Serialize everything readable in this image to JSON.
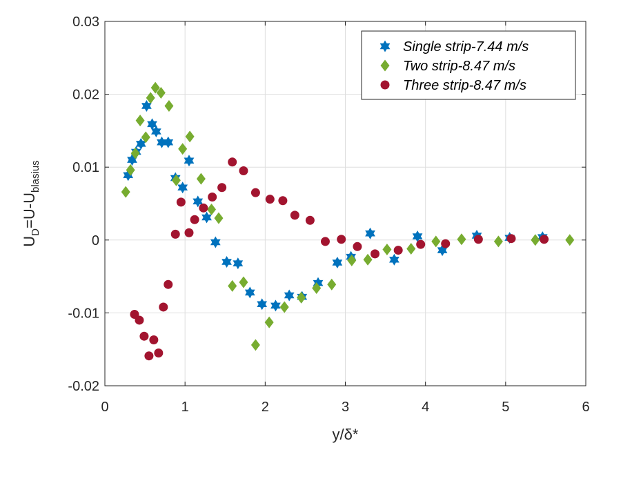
{
  "chart_data": {
    "type": "scatter",
    "xlabel": "y/δ*",
    "ylabel": "U_D=U-U_blasius",
    "ylabel_parts": {
      "main": "U",
      "sub1": "D",
      "mid": "=U-U",
      "sub2": "blasius"
    },
    "xlim": [
      0,
      6
    ],
    "ylim": [
      -0.02,
      0.03
    ],
    "xticks": [
      "0",
      "1",
      "2",
      "3",
      "4",
      "5",
      "6"
    ],
    "yticks": [
      "-0.02",
      "-0.01",
      "0",
      "0.01",
      "0.02",
      "0.03"
    ],
    "grid": true,
    "legend_position": "top-right",
    "series": [
      {
        "name": "Single strip-7.44 m/s",
        "marker": "hexagram",
        "color": "#0072BD",
        "points": [
          [
            0.29,
            0.0089
          ],
          [
            0.34,
            0.011
          ],
          [
            0.39,
            0.0121
          ],
          [
            0.45,
            0.0132
          ],
          [
            0.52,
            0.0184
          ],
          [
            0.59,
            0.0159
          ],
          [
            0.64,
            0.0149
          ],
          [
            0.71,
            0.0134
          ],
          [
            0.79,
            0.0134
          ],
          [
            0.88,
            0.0085
          ],
          [
            0.97,
            0.0072
          ],
          [
            1.05,
            0.0109
          ],
          [
            1.16,
            0.0053
          ],
          [
            1.27,
            0.0031
          ],
          [
            1.38,
            -0.0003
          ],
          [
            1.52,
            -0.003
          ],
          [
            1.66,
            -0.0032
          ],
          [
            1.81,
            -0.0072
          ],
          [
            1.96,
            -0.0088
          ],
          [
            2.13,
            -0.009
          ],
          [
            2.3,
            -0.0076
          ],
          [
            2.46,
            -0.0078
          ],
          [
            2.66,
            -0.0059
          ],
          [
            2.9,
            -0.0031
          ],
          [
            3.07,
            -0.0023
          ],
          [
            3.31,
            0.0009
          ],
          [
            3.61,
            -0.0027
          ],
          [
            3.9,
            0.0005
          ],
          [
            4.21,
            -0.0014
          ],
          [
            4.64,
            0.0006
          ],
          [
            5.05,
            0.0003
          ],
          [
            5.46,
            0.0004
          ]
        ]
      },
      {
        "name": "Two strip-8.47 m/s",
        "marker": "diamond",
        "color": "#77AC30",
        "points": [
          [
            0.26,
            0.0066
          ],
          [
            0.32,
            0.0096
          ],
          [
            0.38,
            0.0119
          ],
          [
            0.44,
            0.0164
          ],
          [
            0.51,
            0.0141
          ],
          [
            0.57,
            0.0195
          ],
          [
            0.63,
            0.0209
          ],
          [
            0.7,
            0.0202
          ],
          [
            0.8,
            0.0184
          ],
          [
            0.89,
            0.0082
          ],
          [
            0.97,
            0.0125
          ],
          [
            1.06,
            0.0142
          ],
          [
            1.2,
            0.0084
          ],
          [
            1.33,
            0.0042
          ],
          [
            1.42,
            0.003
          ],
          [
            1.59,
            -0.0063
          ],
          [
            1.73,
            -0.0058
          ],
          [
            1.88,
            -0.0144
          ],
          [
            2.05,
            -0.0113
          ],
          [
            2.24,
            -0.0092
          ],
          [
            2.45,
            -0.0079
          ],
          [
            2.64,
            -0.0066
          ],
          [
            2.83,
            -0.0061
          ],
          [
            3.08,
            -0.0028
          ],
          [
            3.28,
            -0.0027
          ],
          [
            3.52,
            -0.0013
          ],
          [
            3.82,
            -0.0012
          ],
          [
            4.13,
            -0.0002
          ],
          [
            4.45,
            0.0001
          ],
          [
            4.91,
            -0.0002
          ],
          [
            5.37,
            0.0
          ],
          [
            5.8,
            0.0
          ]
        ]
      },
      {
        "name": "Three strip-8.47 m/s",
        "marker": "circle",
        "color": "#A2142F",
        "points": [
          [
            0.37,
            -0.0102
          ],
          [
            0.43,
            -0.011
          ],
          [
            0.49,
            -0.0132
          ],
          [
            0.55,
            -0.0159
          ],
          [
            0.61,
            -0.0137
          ],
          [
            0.67,
            -0.0155
          ],
          [
            0.73,
            -0.0092
          ],
          [
            0.79,
            -0.0061
          ],
          [
            0.88,
            0.0008
          ],
          [
            0.95,
            0.0052
          ],
          [
            1.05,
            0.001
          ],
          [
            1.12,
            0.0028
          ],
          [
            1.23,
            0.0044
          ],
          [
            1.34,
            0.0059
          ],
          [
            1.46,
            0.0072
          ],
          [
            1.59,
            0.0107
          ],
          [
            1.73,
            0.0095
          ],
          [
            1.88,
            0.0065
          ],
          [
            2.06,
            0.0056
          ],
          [
            2.22,
            0.0054
          ],
          [
            2.37,
            0.0034
          ],
          [
            2.56,
            0.0027
          ],
          [
            2.75,
            -0.0002
          ],
          [
            2.95,
            0.0001
          ],
          [
            3.15,
            -0.0009
          ],
          [
            3.37,
            -0.0019
          ],
          [
            3.66,
            -0.0014
          ],
          [
            3.94,
            -0.0006
          ],
          [
            4.25,
            -0.0005
          ],
          [
            4.66,
            0.0001
          ],
          [
            5.07,
            0.0002
          ],
          [
            5.48,
            0.0001
          ]
        ]
      }
    ]
  }
}
